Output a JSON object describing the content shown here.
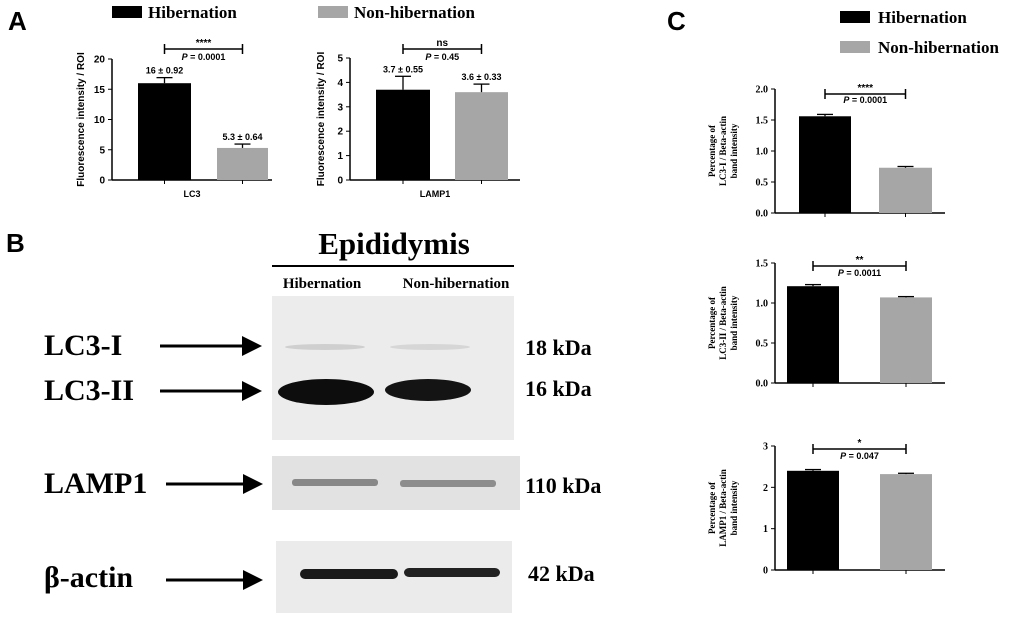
{
  "colors": {
    "hibernation": "#000000",
    "non_hibernation": "#a6a6a6",
    "axis": "#000000",
    "blot_bg": "#e8e8e8",
    "band": "#111111"
  },
  "panels": {
    "A": "A",
    "B": "B",
    "C": "C"
  },
  "legend": {
    "hibernation": "Hibernation",
    "non_hibernation": "Non-hibernation"
  },
  "blot": {
    "title": "Epididymis",
    "col1": "Hibernation",
    "col2": "Non-hibernation",
    "rows": [
      {
        "label": "LC3-I",
        "kda": "18 kDa"
      },
      {
        "label": "LC3-II",
        "kda": "16 kDa"
      },
      {
        "label": "LAMP1",
        "kda": "110 kDa"
      },
      {
        "label": "β-actin",
        "kda": "42 kDa"
      }
    ]
  },
  "chart_data": [
    {
      "type": "bar",
      "panel": "A",
      "categories": [
        "Hibernation",
        "Non-hibernation"
      ],
      "values": [
        16,
        5.3
      ],
      "errors": [
        0.92,
        0.64
      ],
      "value_labels": [
        "16 ± 0.92",
        "5.3 ± 0.64"
      ],
      "ylabel": "Fluorescence intensity / ROI",
      "xlabel": "LC3",
      "ylim": [
        0,
        20
      ],
      "yticks": [
        0,
        5,
        10,
        15,
        20
      ],
      "sig": "****",
      "p_text": "P = 0.0001"
    },
    {
      "type": "bar",
      "panel": "A",
      "categories": [
        "Hibernation",
        "Non-hibernation"
      ],
      "values": [
        3.7,
        3.6
      ],
      "errors": [
        0.55,
        0.33
      ],
      "value_labels": [
        "3.7 ± 0.55",
        "3.6 ± 0.33"
      ],
      "ylabel": "Fluorescence intensity / ROI",
      "xlabel": "LAMP1",
      "ylim": [
        0,
        5
      ],
      "yticks": [
        0,
        1,
        2,
        3,
        4,
        5
      ],
      "sig": "ns",
      "p_text": "P = 0.45"
    },
    {
      "type": "bar",
      "panel": "C",
      "categories": [
        "Hibernation",
        "Non-hibernation"
      ],
      "values": [
        1.56,
        0.73
      ],
      "errors": [
        0.03,
        0.02
      ],
      "ylabel_lines": [
        "Percentage of",
        "LC3-I / Beta-actin",
        "band intensity"
      ],
      "ylim": [
        0,
        2.0
      ],
      "yticks": [
        0.0,
        0.5,
        1.0,
        1.5,
        2.0
      ],
      "ytick_labels": [
        "0.0",
        "0.5",
        "1.0",
        "1.5",
        "2.0"
      ],
      "sig": "****",
      "p_text": "P = 0.0001"
    },
    {
      "type": "bar",
      "panel": "C",
      "categories": [
        "Hibernation",
        "Non-hibernation"
      ],
      "values": [
        1.21,
        1.07
      ],
      "errors": [
        0.02,
        0.01
      ],
      "ylabel_lines": [
        "Percentage of",
        "LC3-II / Beta-actin",
        "band intensity"
      ],
      "ylim": [
        0,
        1.5
      ],
      "yticks": [
        0.0,
        0.5,
        1.0,
        1.5
      ],
      "ytick_labels": [
        "0.0",
        "0.5",
        "1.0",
        "1.5"
      ],
      "sig": "**",
      "p_text": "P = 0.0011"
    },
    {
      "type": "bar",
      "panel": "C",
      "categories": [
        "Hibernation",
        "Non-hibernation"
      ],
      "values": [
        2.4,
        2.32
      ],
      "errors": [
        0.03,
        0.02
      ],
      "ylabel_lines": [
        "Percentage of",
        "LAMP1 / Beta-actin",
        "band intensity"
      ],
      "ylim": [
        0,
        3
      ],
      "yticks": [
        0,
        1,
        2,
        3
      ],
      "ytick_labels": [
        "0",
        "1",
        "2",
        "3"
      ],
      "sig": "*",
      "p_text": "P = 0.047"
    }
  ]
}
